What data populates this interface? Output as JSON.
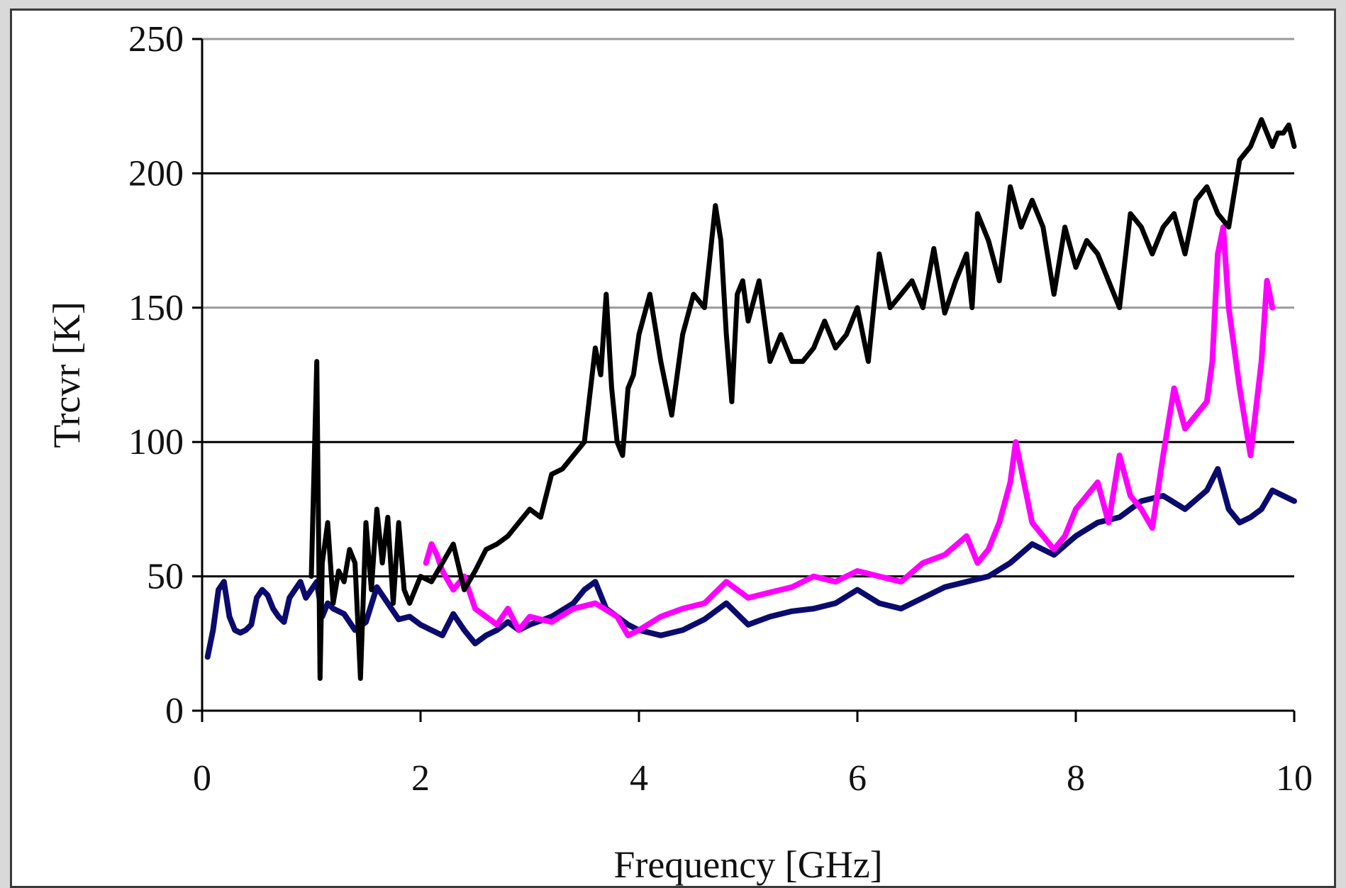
{
  "chart_data": {
    "type": "line",
    "title": "",
    "xlabel": "Frequency [GHz]",
    "ylabel": "Trcvr [K]",
    "xlim": [
      0,
      10
    ],
    "ylim": [
      0,
      250
    ],
    "x_ticks": [
      0,
      2,
      4,
      6,
      8,
      10
    ],
    "y_ticks": [
      0,
      50,
      100,
      150,
      200,
      250
    ],
    "x_tick_labels": [
      "0",
      "2",
      "4",
      "6",
      "8",
      "10"
    ],
    "y_tick_labels": [
      "0",
      "50",
      "100",
      "150",
      "200",
      "250"
    ],
    "grid": "horizontal",
    "legend": "none",
    "series": [
      {
        "color": "#0b0b6e",
        "x": [
          0.05,
          0.1,
          0.15,
          0.2,
          0.25,
          0.3,
          0.35,
          0.4,
          0.45,
          0.5,
          0.55,
          0.6,
          0.65,
          0.7,
          0.75,
          0.8,
          0.85,
          0.9,
          0.95,
          1.0,
          1.05,
          1.1,
          1.15,
          1.2,
          1.3,
          1.4,
          1.5,
          1.6,
          1.7,
          1.8,
          1.9,
          2.0,
          2.1,
          2.2,
          2.3,
          2.4,
          2.5,
          2.6,
          2.7,
          2.8,
          2.9,
          3.0,
          3.2,
          3.4,
          3.5,
          3.6,
          3.7,
          3.8,
          3.9,
          4.0,
          4.2,
          4.4,
          4.6,
          4.8,
          5.0,
          5.2,
          5.4,
          5.6,
          5.8,
          6.0,
          6.2,
          6.4,
          6.6,
          6.8,
          7.0,
          7.2,
          7.4,
          7.6,
          7.8,
          8.0,
          8.2,
          8.4,
          8.6,
          8.8,
          9.0,
          9.2,
          9.3,
          9.4,
          9.5,
          9.6,
          9.7,
          9.8,
          9.9,
          10.0
        ],
        "y": [
          20,
          30,
          45,
          48,
          35,
          30,
          29,
          30,
          32,
          42,
          45,
          43,
          38,
          35,
          33,
          42,
          45,
          48,
          42,
          45,
          48,
          35,
          40,
          38,
          36,
          30,
          33,
          46,
          40,
          34,
          35,
          32,
          30,
          28,
          36,
          30,
          25,
          28,
          30,
          33,
          30,
          32,
          35,
          40,
          45,
          48,
          38,
          35,
          32,
          30,
          28,
          30,
          34,
          40,
          32,
          35,
          37,
          38,
          40,
          45,
          40,
          38,
          42,
          46,
          48,
          50,
          55,
          62,
          58,
          65,
          70,
          72,
          78,
          80,
          75,
          82,
          90,
          75,
          70,
          72,
          75,
          82,
          80,
          78
        ]
      },
      {
        "color": "#ff00ff",
        "x": [
          2.05,
          2.1,
          2.15,
          2.2,
          2.3,
          2.4,
          2.5,
          2.6,
          2.7,
          2.8,
          2.9,
          3.0,
          3.2,
          3.4,
          3.6,
          3.8,
          3.9,
          4.0,
          4.2,
          4.4,
          4.6,
          4.8,
          5.0,
          5.2,
          5.4,
          5.6,
          5.8,
          6.0,
          6.2,
          6.4,
          6.6,
          6.8,
          7.0,
          7.1,
          7.2,
          7.3,
          7.4,
          7.45,
          7.5,
          7.6,
          7.7,
          7.8,
          7.9,
          8.0,
          8.1,
          8.2,
          8.3,
          8.4,
          8.5,
          8.6,
          8.7,
          8.8,
          8.9,
          9.0,
          9.1,
          9.2,
          9.25,
          9.3,
          9.35,
          9.4,
          9.5,
          9.6,
          9.7,
          9.75,
          9.8
        ],
        "y": [
          55,
          62,
          58,
          52,
          45,
          50,
          38,
          35,
          32,
          38,
          30,
          35,
          33,
          38,
          40,
          35,
          28,
          30,
          35,
          38,
          40,
          48,
          42,
          44,
          46,
          50,
          48,
          52,
          50,
          48,
          55,
          58,
          65,
          55,
          60,
          70,
          85,
          100,
          90,
          70,
          65,
          60,
          65,
          75,
          80,
          85,
          70,
          95,
          80,
          75,
          68,
          95,
          120,
          105,
          110,
          115,
          130,
          170,
          180,
          150,
          120,
          95,
          130,
          160,
          150
        ]
      },
      {
        "color": "#000000",
        "x": [
          1.0,
          1.05,
          1.08,
          1.1,
          1.15,
          1.2,
          1.25,
          1.3,
          1.35,
          1.4,
          1.45,
          1.5,
          1.55,
          1.6,
          1.65,
          1.7,
          1.75,
          1.8,
          1.85,
          1.9,
          2.0,
          2.1,
          2.2,
          2.3,
          2.4,
          2.5,
          2.6,
          2.7,
          2.8,
          2.9,
          3.0,
          3.1,
          3.2,
          3.3,
          3.4,
          3.5,
          3.6,
          3.65,
          3.7,
          3.75,
          3.8,
          3.85,
          3.9,
          3.95,
          4.0,
          4.1,
          4.2,
          4.3,
          4.4,
          4.5,
          4.6,
          4.7,
          4.75,
          4.8,
          4.85,
          4.9,
          4.95,
          5.0,
          5.1,
          5.2,
          5.3,
          5.4,
          5.5,
          5.6,
          5.7,
          5.8,
          5.9,
          6.0,
          6.1,
          6.2,
          6.3,
          6.4,
          6.5,
          6.6,
          6.7,
          6.8,
          6.9,
          7.0,
          7.05,
          7.1,
          7.2,
          7.3,
          7.4,
          7.5,
          7.6,
          7.7,
          7.8,
          7.9,
          8.0,
          8.1,
          8.2,
          8.3,
          8.4,
          8.5,
          8.6,
          8.7,
          8.8,
          8.9,
          9.0,
          9.1,
          9.2,
          9.3,
          9.4,
          9.5,
          9.6,
          9.7,
          9.8,
          9.85,
          9.9,
          9.95,
          10.0
        ],
        "y": [
          50,
          130,
          12,
          55,
          70,
          40,
          52,
          48,
          60,
          55,
          12,
          70,
          45,
          75,
          55,
          72,
          40,
          70,
          45,
          40,
          50,
          48,
          55,
          62,
          45,
          52,
          60,
          62,
          65,
          70,
          75,
          72,
          88,
          90,
          95,
          100,
          135,
          125,
          155,
          120,
          100,
          95,
          120,
          125,
          140,
          155,
          130,
          110,
          140,
          155,
          150,
          188,
          175,
          140,
          115,
          155,
          160,
          145,
          160,
          130,
          140,
          130,
          130,
          135,
          145,
          135,
          140,
          150,
          130,
          170,
          150,
          155,
          160,
          150,
          172,
          148,
          160,
          170,
          150,
          185,
          175,
          160,
          195,
          180,
          190,
          180,
          155,
          180,
          165,
          175,
          170,
          160,
          150,
          185,
          180,
          170,
          180,
          185,
          170,
          190,
          195,
          185,
          180,
          205,
          210,
          220,
          210,
          215,
          215,
          218,
          210
        ]
      }
    ]
  }
}
